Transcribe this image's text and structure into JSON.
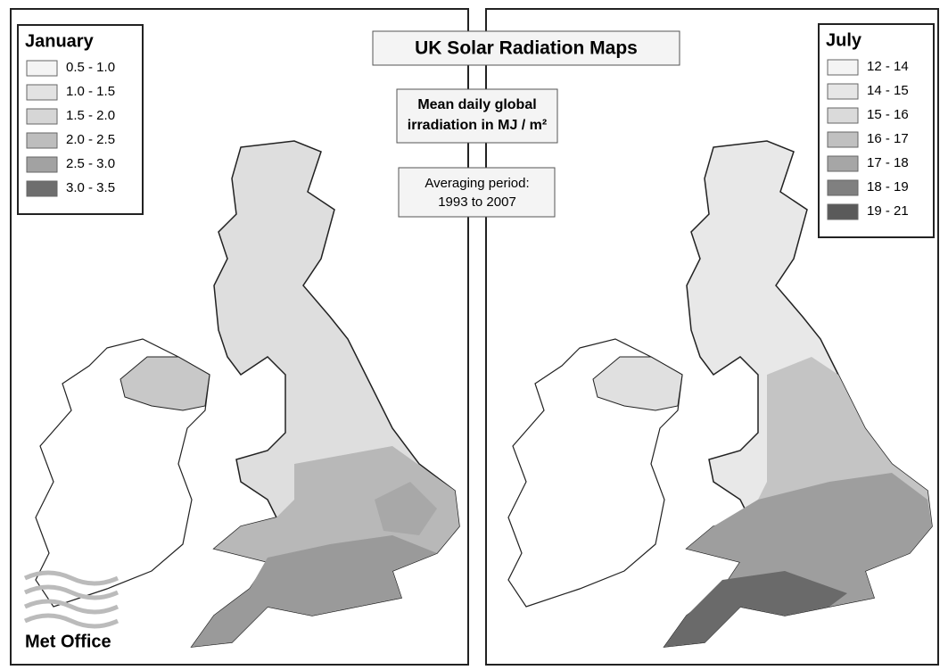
{
  "title": "UK Solar Radiation Maps",
  "subtitle": [
    "Mean daily global",
    "irradiation in MJ / m²"
  ],
  "averaging_period": [
    "Averaging period:",
    "1993 to 2007"
  ],
  "logo": "Met Office",
  "maps": [
    {
      "legend_title": "January",
      "legend": [
        {
          "label": "0.5 - 1.0",
          "color": "#f4f4f4"
        },
        {
          "label": "1.0 - 1.5",
          "color": "#e2e2e2"
        },
        {
          "label": "1.5 - 2.0",
          "color": "#d6d6d6"
        },
        {
          "label": "2.0 - 2.5",
          "color": "#bdbdbd"
        },
        {
          "label": "2.5 - 3.0",
          "color": "#a2a2a2"
        },
        {
          "label": "3.0 - 3.5",
          "color": "#6e6e6e"
        }
      ]
    },
    {
      "legend_title": "July",
      "legend": [
        {
          "label": "12 - 14",
          "color": "#f4f4f4"
        },
        {
          "label": "14 - 15",
          "color": "#e6e6e6"
        },
        {
          "label": "15 - 16",
          "color": "#dadada"
        },
        {
          "label": "16 - 17",
          "color": "#c0c0c0"
        },
        {
          "label": "17 - 18",
          "color": "#a6a6a6"
        },
        {
          "label": "18 - 19",
          "color": "#808080"
        },
        {
          "label": "19 - 21",
          "color": "#5a5a5a"
        }
      ]
    }
  ]
}
